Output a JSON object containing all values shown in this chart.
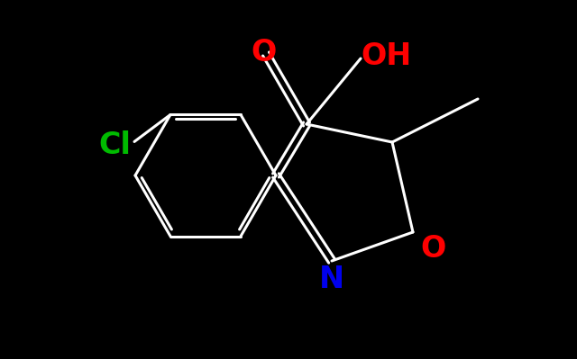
{
  "background_color": "#000000",
  "bond_color": "#ffffff",
  "atom_colors": {
    "O_carbonyl": "#ff0000",
    "OH": "#ff0000",
    "O_ring": "#ff0000",
    "N": "#0000ee",
    "Cl": "#00bb00"
  },
  "figsize": [
    6.4,
    3.99
  ],
  "dpi": 100,
  "font_size_atoms": 20,
  "line_width": 2.2
}
